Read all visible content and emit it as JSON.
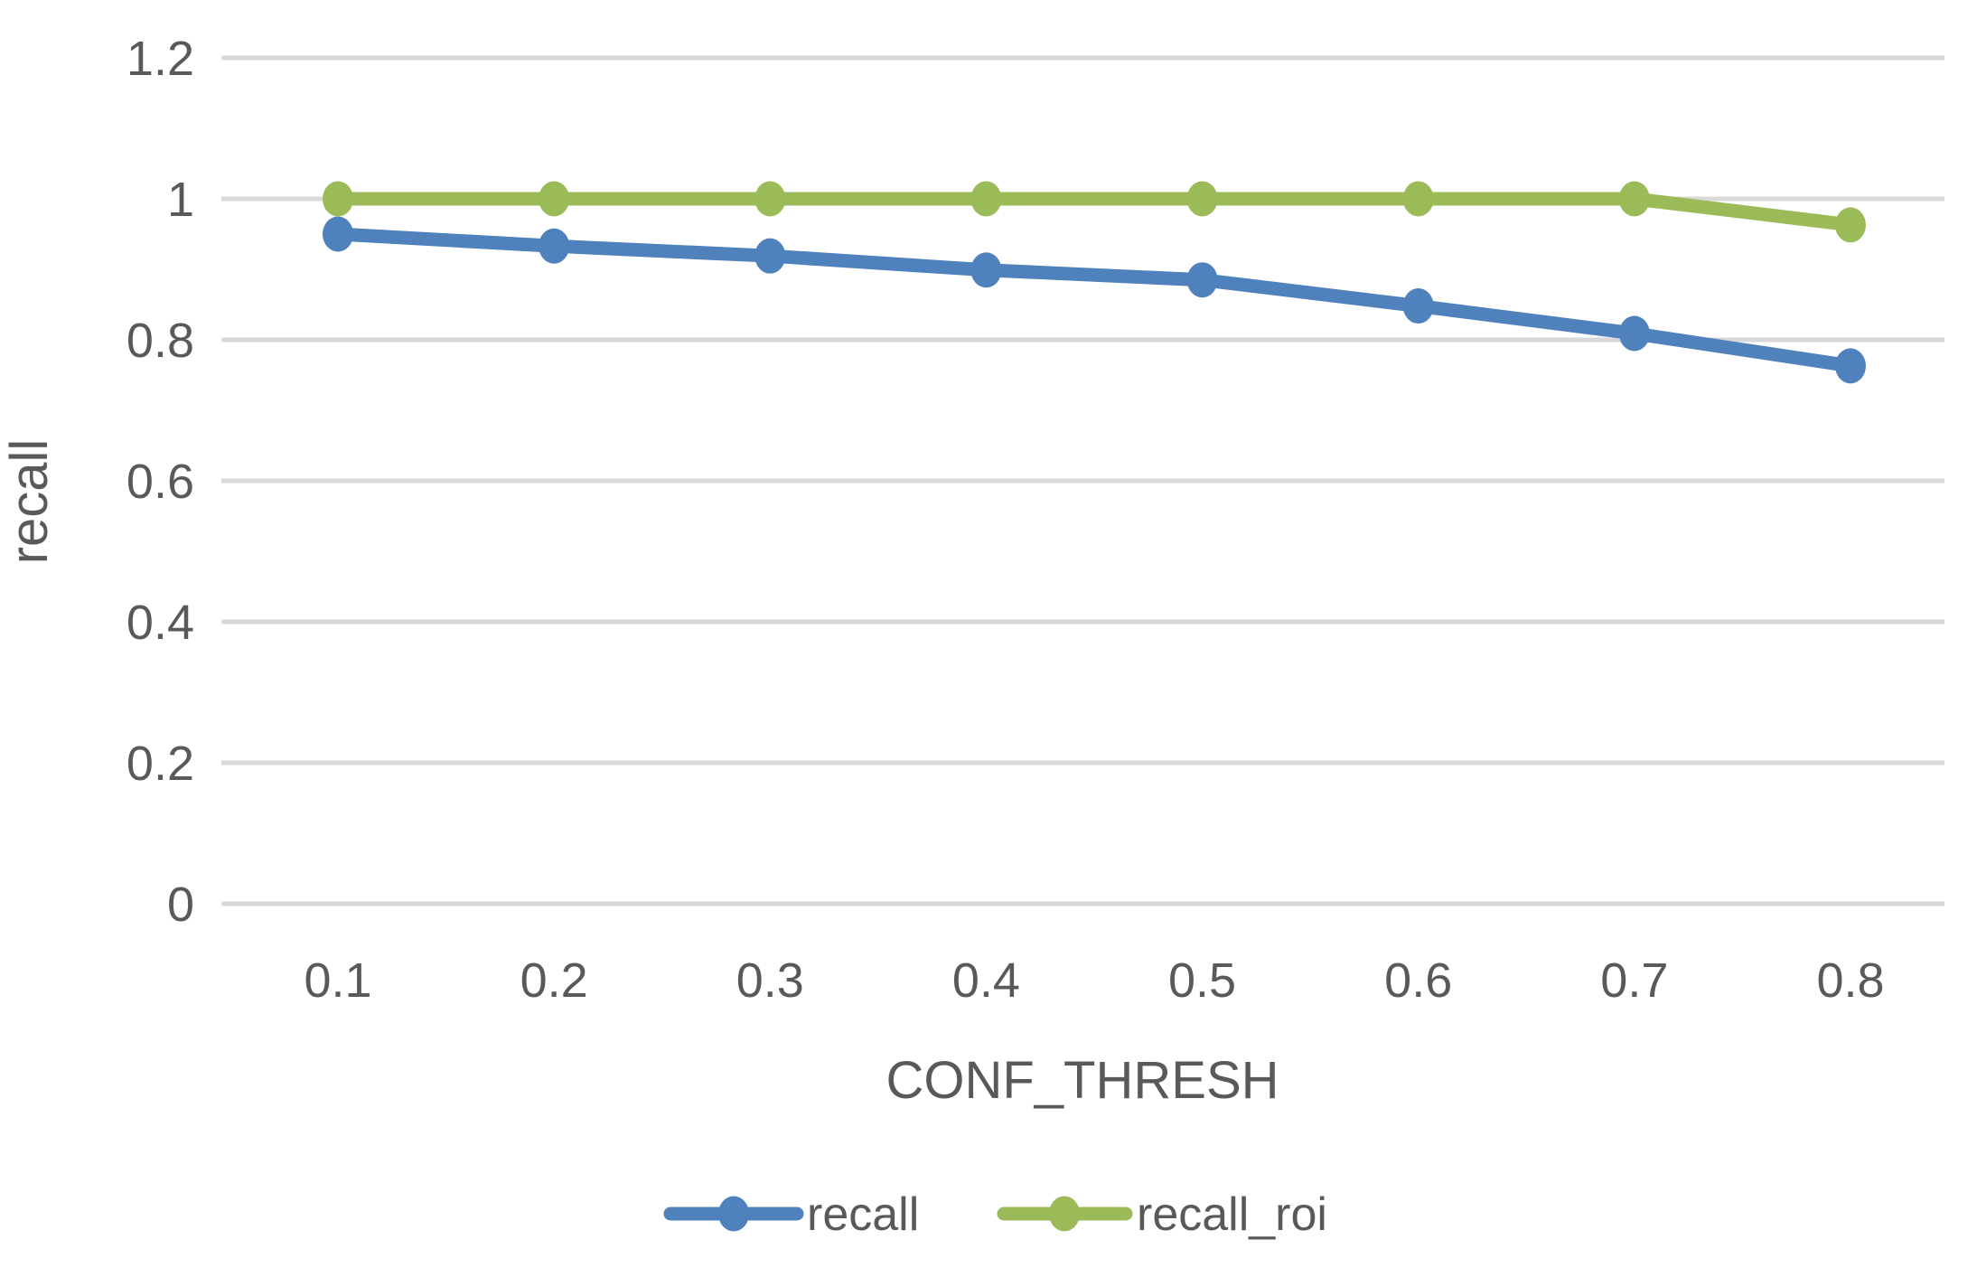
{
  "chart_data": {
    "type": "line",
    "title": "",
    "xlabel": "CONF_THRESH",
    "ylabel": "recall",
    "x": [
      0.1,
      0.2,
      0.3,
      0.4,
      0.5,
      0.6,
      0.7,
      0.8
    ],
    "series": [
      {
        "name": "recall",
        "color": "#4F81BD",
        "values": [
          0.95,
          0.933,
          0.919,
          0.899,
          0.885,
          0.848,
          0.809,
          0.763
        ]
      },
      {
        "name": "recall_roi",
        "color": "#9BBB59",
        "values": [
          1.0,
          1.0,
          1.0,
          1.0,
          1.0,
          1.0,
          1.0,
          0.963
        ]
      }
    ],
    "ylim": [
      0,
      1.2
    ],
    "yticks": [
      0,
      0.2,
      0.4,
      0.6,
      0.8,
      1,
      1.2
    ],
    "grid": true,
    "legend_position": "bottom",
    "gridline_color": "#D9D9D9",
    "text_color": "#595959",
    "background": "#FFFFFF"
  }
}
